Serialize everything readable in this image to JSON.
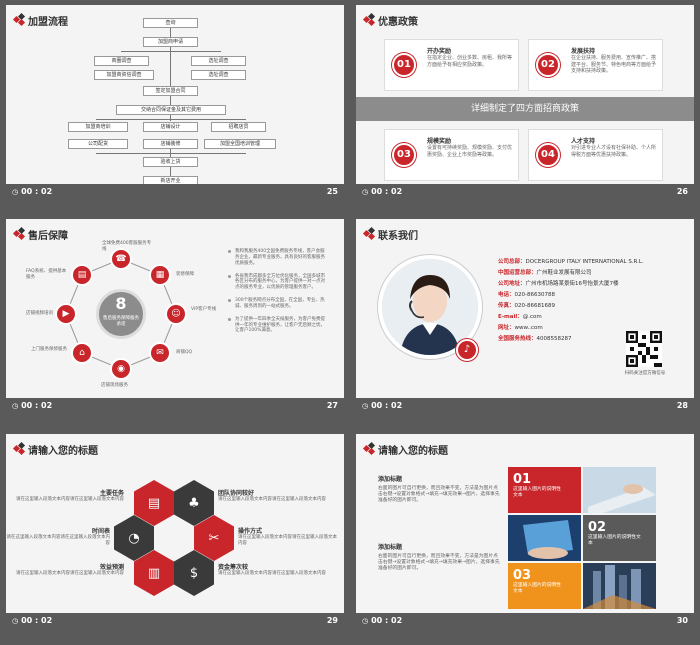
{
  "footer_time": "00 : 02",
  "slides": [
    {
      "page": "25",
      "title": "加盟流程",
      "flow": [
        "查询",
        "加盟商申请",
        "商圈调查",
        "选址调查",
        "加盟商资信调查",
        "选址调查",
        "签定加盟合同",
        "交纳合同保证金及其它费用",
        "加盟商培训",
        "店铺设计",
        "招聘店员",
        "公司配货",
        "店铺装修",
        "加盟全国培训管理",
        "验收上货",
        "新店开业"
      ]
    },
    {
      "page": "26",
      "title": "优惠政策",
      "banner": "详细制定了四方面招商政策",
      "items": [
        {
          "num": "01",
          "head": "开办奖励",
          "text": "在指定企业、创业多数、房租、我所等方面给予有相应奖励政策。"
        },
        {
          "num": "02",
          "head": "发展扶持",
          "text": "在企业扶持、服务费用、宣传推广、搭建平台、服务节、特色电商等方面给予支持和扶持政策。"
        },
        {
          "num": "03",
          "head": "规模奖励",
          "text": "设置有可持续奖励、规模奖励、支付优惠奖励、企业上市奖励等政策。"
        },
        {
          "num": "04",
          "head": "人才支持",
          "text": "对引进专业人才设有社保补助、个人所得税方面等优惠扶持政策。"
        }
      ]
    },
    {
      "page": "27",
      "title": "售后保障",
      "center_num": "8",
      "center_text": "售后服务保障服务承诺",
      "labels": [
        "全球免费400客服服务专线",
        "装修保障",
        "VIP客户专线",
        "商铺QQ",
        "店铺现场服务",
        "上门服务保修服务",
        "店铺视频培训",
        "FAQ系统、提供基本服务"
      ],
      "bullets": [
        "我和我服务400全国免费服务专线，客户会服务企业，最新专业服务，具有良好的客服服务优质服务。",
        "各省我市成都多全方位优化服务，全国多城市各区分布的服务中心，为客户提供一对一点对点的服务专业，以优质的管理服务客户。",
        "300个服务网点分布全国，在全国，专业、热诚、服务周到的一站式服务。",
        "为了提供一年四季全天候服务，为客户免费提供一年的专业维护服务，让客户无后顾之忧，让客户100%满意。"
      ]
    },
    {
      "page": "28",
      "title": "联系我们",
      "rows": [
        {
          "k": "公司总部：",
          "v": "DOCERGROUP ITALY INTERNATIONAL S.R.L."
        },
        {
          "k": "中国运营总部：",
          "v": "广州鞋业发展有限公司"
        },
        {
          "k": "公司地址：",
          "v": "广州市机场路某景街16号怡景大厦7楼"
        },
        {
          "k": "电话：",
          "v": "020-86630788"
        },
        {
          "k": "传真：",
          "v": "020-86681689"
        },
        {
          "k": "E-mail：",
          "v": "@.com"
        },
        {
          "k": "网址：",
          "v": "www..com"
        },
        {
          "k": "全国服务热线：",
          "v": "4008558287"
        }
      ],
      "qr_caption": "扫码关注官方微信号"
    },
    {
      "page": "29",
      "title": "请输入您的标题",
      "left": [
        {
          "head": "主要任务",
          "text": "请在这里输入段落文本内容请在这里输入段落文本内容"
        },
        {
          "head": "时间表",
          "text": "请在这里输入段落文本内容请在这里输入段落文本内容"
        },
        {
          "head": "效益预测",
          "text": "请在这里输入段落文本内容请在这里输入段落文本内容"
        }
      ],
      "right": [
        {
          "head": "团队协同较好",
          "text": "请在这里输入段落文本内容请在这里输入段落文本内容"
        },
        {
          "head": "操作方式",
          "text": "请在这里输入段落文本内容请在这里输入段落文本内容"
        },
        {
          "head": "资金筹次较",
          "text": "请在这里输入段落文本内容请在这里输入段落文本内容"
        }
      ]
    },
    {
      "page": "30",
      "title": "请输入您的标题",
      "blocks": [
        {
          "head": "添加标题",
          "text": "右面的图片可自行更换，而且效果不变，方法是为图片点击右键→设置对象格式→填充→填充效果→图片，选择事先准备好的图片即可。"
        },
        {
          "head": "添加标题",
          "text": "右面的图片可自行更换，而且效果不变，方法是为图片点击右键→设置对象格式→填充→填充效果→图片，选择事先准备好的图片即可。"
        }
      ],
      "tiles": [
        {
          "num": "01",
          "text": "这里输入图片的说明性文本",
          "color": "#c8262b"
        },
        {
          "num": "02",
          "text": "这里输入图片的说明性文本",
          "color": "#5a5a5a"
        },
        {
          "num": "03",
          "text": "这里输入图片的说明性文本",
          "color": "#f0931d"
        }
      ]
    }
  ]
}
